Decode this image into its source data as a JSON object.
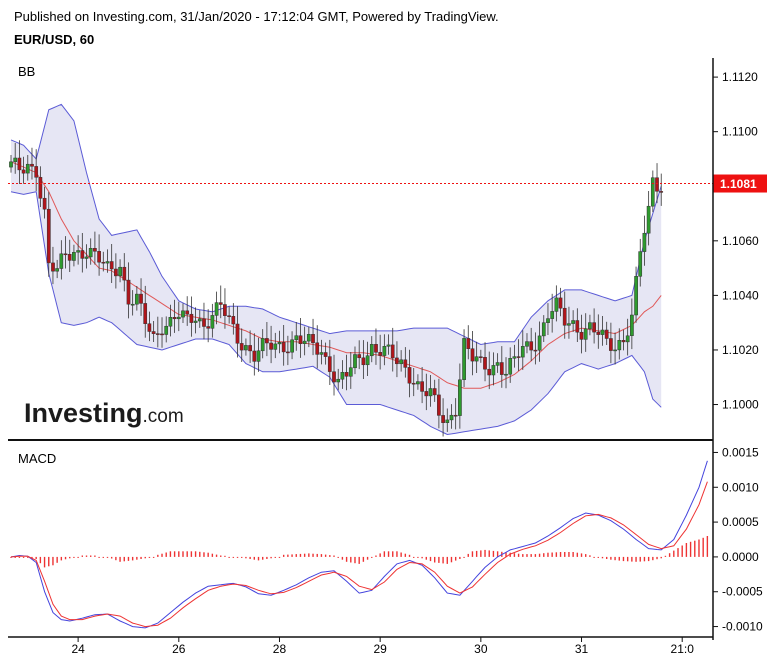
{
  "header": {
    "published": "Published on Investing.com, 31/Jan/2020 - 17:12:04 GMT, Powered by TradingView.",
    "symbol": "EUR/USD, 60"
  },
  "watermark": {
    "brand": "Investing",
    "suffix": ".com"
  },
  "colors": {
    "bb_band": "#5b5bd6",
    "bb_fill": "#e3e3f3",
    "bb_basis": "#e05858",
    "candle_up": "#2e9a2e",
    "candle_down": "#b0151b",
    "last_price": "#ee1111",
    "macd_line": "#4444dd",
    "signal_line": "#ee3333",
    "histogram": "#ee3333"
  },
  "chart_data": [
    {
      "type": "candlestick",
      "indicator_label": "BB",
      "last_price": 1.1081,
      "last_price_label": "1.1081",
      "ylim": [
        1.0987,
        1.1127
      ],
      "y_ticks": [
        {
          "value": 1.112,
          "label": "1.1120"
        },
        {
          "value": 1.11,
          "label": "1.1100"
        },
        {
          "value": 1.108,
          "label": "1.1080"
        },
        {
          "value": 1.106,
          "label": "1.1060"
        },
        {
          "value": 1.104,
          "label": "1.1040"
        },
        {
          "value": 1.102,
          "label": "1.1020"
        },
        {
          "value": 1.1,
          "label": "1.1000"
        }
      ],
      "x_ticks": [
        {
          "index": 16,
          "label": "24"
        },
        {
          "index": 40,
          "label": "26"
        },
        {
          "index": 64,
          "label": "28"
        },
        {
          "index": 88,
          "label": "29"
        },
        {
          "index": 112,
          "label": "30"
        },
        {
          "index": 136,
          "label": "31"
        },
        {
          "index": 160,
          "label": "21:0"
        }
      ],
      "price_anchors": [
        [
          0,
          1.1087
        ],
        [
          2,
          1.1085
        ],
        [
          4,
          1.1088
        ],
        [
          6,
          1.1087
        ],
        [
          8,
          1.107
        ],
        [
          9,
          1.105
        ],
        [
          11,
          1.1048
        ],
        [
          13,
          1.1055
        ],
        [
          15,
          1.1057
        ],
        [
          18,
          1.1056
        ],
        [
          20,
          1.1053
        ],
        [
          23,
          1.105
        ],
        [
          26,
          1.1052
        ],
        [
          28,
          1.1038
        ],
        [
          30,
          1.1037
        ],
        [
          32,
          1.103
        ],
        [
          34,
          1.1025
        ],
        [
          36,
          1.103
        ],
        [
          38,
          1.103
        ],
        [
          40,
          1.1032
        ],
        [
          42,
          1.103
        ],
        [
          44,
          1.1033
        ],
        [
          46,
          1.103
        ],
        [
          48,
          1.1033
        ],
        [
          50,
          1.1035
        ],
        [
          52,
          1.103
        ],
        [
          54,
          1.1025
        ],
        [
          56,
          1.1022
        ],
        [
          58,
          1.1018
        ],
        [
          60,
          1.102
        ],
        [
          62,
          1.1021
        ],
        [
          64,
          1.1022
        ],
        [
          66,
          1.1023
        ],
        [
          68,
          1.1024
        ],
        [
          70,
          1.1022
        ],
        [
          72,
          1.1021
        ],
        [
          74,
          1.102
        ],
        [
          76,
          1.1015
        ],
        [
          78,
          1.1008
        ],
        [
          80,
          1.101
        ],
        [
          82,
          1.1015
        ],
        [
          84,
          1.1018
        ],
        [
          86,
          1.1022
        ],
        [
          88,
          1.102
        ],
        [
          90,
          1.1018
        ],
        [
          92,
          1.1015
        ],
        [
          94,
          1.1014
        ],
        [
          96,
          1.101
        ],
        [
          98,
          1.1005
        ],
        [
          100,
          1.1003
        ],
        [
          102,
          1.0996
        ],
        [
          104,
          1.0994
        ],
        [
          106,
          1.1
        ],
        [
          108,
          1.1022
        ],
        [
          110,
          1.1016
        ],
        [
          112,
          1.1014
        ],
        [
          114,
          1.1014
        ],
        [
          116,
          1.1016
        ],
        [
          118,
          1.1012
        ],
        [
          120,
          1.1015
        ],
        [
          122,
          1.102
        ],
        [
          124,
          1.1022
        ],
        [
          126,
          1.1026
        ],
        [
          128,
          1.1033
        ],
        [
          130,
          1.1035
        ],
        [
          132,
          1.103
        ],
        [
          134,
          1.103
        ],
        [
          136,
          1.1028
        ],
        [
          138,
          1.1028
        ],
        [
          140,
          1.1025
        ],
        [
          142,
          1.1022
        ],
        [
          144,
          1.1022
        ],
        [
          146,
          1.1025
        ],
        [
          148,
          1.1032
        ],
        [
          150,
          1.1055
        ],
        [
          152,
          1.107
        ],
        [
          153,
          1.1082
        ],
        [
          155,
          1.1081
        ]
      ],
      "bb_upper_anchors": [
        [
          0,
          1.1097
        ],
        [
          3,
          1.1095
        ],
        [
          6,
          1.109
        ],
        [
          9,
          1.1108
        ],
        [
          12,
          1.111
        ],
        [
          15,
          1.1104
        ],
        [
          18,
          1.1085
        ],
        [
          21,
          1.1068
        ],
        [
          24,
          1.1062
        ],
        [
          27,
          1.1063
        ],
        [
          30,
          1.1064
        ],
        [
          33,
          1.1056
        ],
        [
          36,
          1.1047
        ],
        [
          40,
          1.1038
        ],
        [
          44,
          1.1035
        ],
        [
          48,
          1.1034
        ],
        [
          52,
          1.1036
        ],
        [
          56,
          1.1036
        ],
        [
          60,
          1.1035
        ],
        [
          64,
          1.1032
        ],
        [
          68,
          1.103
        ],
        [
          72,
          1.1028
        ],
        [
          76,
          1.1026
        ],
        [
          80,
          1.1027
        ],
        [
          84,
          1.1027
        ],
        [
          88,
          1.1027
        ],
        [
          92,
          1.1027
        ],
        [
          96,
          1.1028
        ],
        [
          100,
          1.1028
        ],
        [
          104,
          1.1028
        ],
        [
          108,
          1.1025
        ],
        [
          112,
          1.1022
        ],
        [
          116,
          1.1023
        ],
        [
          120,
          1.1023
        ],
        [
          124,
          1.1032
        ],
        [
          128,
          1.1038
        ],
        [
          132,
          1.1042
        ],
        [
          136,
          1.1042
        ],
        [
          140,
          1.104
        ],
        [
          144,
          1.1038
        ],
        [
          148,
          1.104
        ],
        [
          151,
          1.106
        ],
        [
          153,
          1.107
        ],
        [
          155,
          1.108
        ]
      ],
      "bb_basis_anchors": [
        [
          0,
          1.1089
        ],
        [
          3,
          1.1087
        ],
        [
          6,
          1.1085
        ],
        [
          9,
          1.1078
        ],
        [
          12,
          1.1068
        ],
        [
          15,
          1.106
        ],
        [
          18,
          1.1055
        ],
        [
          21,
          1.105
        ],
        [
          24,
          1.1049
        ],
        [
          27,
          1.1046
        ],
        [
          30,
          1.1043
        ],
        [
          33,
          1.104
        ],
        [
          36,
          1.1037
        ],
        [
          40,
          1.1033
        ],
        [
          44,
          1.1032
        ],
        [
          48,
          1.1031
        ],
        [
          52,
          1.1029
        ],
        [
          56,
          1.1027
        ],
        [
          60,
          1.1024
        ],
        [
          64,
          1.1023
        ],
        [
          68,
          1.1023
        ],
        [
          72,
          1.1022
        ],
        [
          76,
          1.1021
        ],
        [
          80,
          1.1019
        ],
        [
          84,
          1.1019
        ],
        [
          88,
          1.1018
        ],
        [
          92,
          1.1016
        ],
        [
          96,
          1.1014
        ],
        [
          100,
          1.1012
        ],
        [
          104,
          1.1008
        ],
        [
          108,
          1.1006
        ],
        [
          112,
          1.1006
        ],
        [
          116,
          1.1008
        ],
        [
          120,
          1.1011
        ],
        [
          124,
          1.1016
        ],
        [
          128,
          1.1022
        ],
        [
          132,
          1.1026
        ],
        [
          136,
          1.1028
        ],
        [
          140,
          1.1027
        ],
        [
          144,
          1.1026
        ],
        [
          148,
          1.1029
        ],
        [
          151,
          1.1034
        ],
        [
          153,
          1.1036
        ],
        [
          155,
          1.104
        ]
      ],
      "bb_lower_anchors": [
        [
          0,
          1.1078
        ],
        [
          3,
          1.1077
        ],
        [
          6,
          1.1078
        ],
        [
          9,
          1.1048
        ],
        [
          12,
          1.103
        ],
        [
          15,
          1.1029
        ],
        [
          18,
          1.103
        ],
        [
          21,
          1.1032
        ],
        [
          24,
          1.103
        ],
        [
          27,
          1.1026
        ],
        [
          30,
          1.1022
        ],
        [
          33,
          1.1021
        ],
        [
          36,
          1.102
        ],
        [
          40,
          1.1022
        ],
        [
          44,
          1.1024
        ],
        [
          48,
          1.1024
        ],
        [
          52,
          1.1022
        ],
        [
          56,
          1.1015
        ],
        [
          60,
          1.1012
        ],
        [
          64,
          1.1012
        ],
        [
          68,
          1.1013
        ],
        [
          72,
          1.1014
        ],
        [
          76,
          1.101
        ],
        [
          80,
          1.1
        ],
        [
          84,
          1.1
        ],
        [
          88,
          1.1
        ],
        [
          92,
          1.0998
        ],
        [
          96,
          1.0996
        ],
        [
          100,
          1.0992
        ],
        [
          104,
          1.0989
        ],
        [
          108,
          1.099
        ],
        [
          112,
          1.0991
        ],
        [
          116,
          1.0992
        ],
        [
          120,
          1.0994
        ],
        [
          124,
          1.0998
        ],
        [
          128,
          1.1004
        ],
        [
          132,
          1.1012
        ],
        [
          136,
          1.1015
        ],
        [
          140,
          1.1013
        ],
        [
          144,
          1.1015
        ],
        [
          148,
          1.1018
        ],
        [
          151,
          1.1012
        ],
        [
          153,
          1.1002
        ],
        [
          155,
          1.0999
        ]
      ]
    },
    {
      "type": "line",
      "indicator_label": "MACD",
      "ylim": [
        -0.00115,
        0.00165
      ],
      "y_ticks": [
        {
          "value": 0.0015,
          "label": "0.0015"
        },
        {
          "value": 0.001,
          "label": "0.0010"
        },
        {
          "value": 0.0005,
          "label": "0.0005"
        },
        {
          "value": 0.0,
          "label": "0.0000"
        },
        {
          "value": -0.0005,
          "label": "-0.0005"
        },
        {
          "value": -0.001,
          "label": "-0.0010"
        }
      ],
      "macd_anchors": [
        [
          0,
          0.0
        ],
        [
          2,
          2e-05
        ],
        [
          4,
          1e-05
        ],
        [
          6,
          -8e-05
        ],
        [
          8,
          -0.0005
        ],
        [
          10,
          -0.0008
        ],
        [
          12,
          -0.0009
        ],
        [
          14,
          -0.00092
        ],
        [
          17,
          -0.00088
        ],
        [
          20,
          -0.00083
        ],
        [
          23,
          -0.00082
        ],
        [
          26,
          -0.00092
        ],
        [
          29,
          -0.001
        ],
        [
          32,
          -0.00102
        ],
        [
          35,
          -0.00095
        ],
        [
          38,
          -0.0008
        ],
        [
          41,
          -0.00065
        ],
        [
          44,
          -0.00052
        ],
        [
          47,
          -0.00042
        ],
        [
          50,
          -0.0004
        ],
        [
          53,
          -0.00038
        ],
        [
          56,
          -0.00043
        ],
        [
          59,
          -0.00053
        ],
        [
          62,
          -0.00055
        ],
        [
          65,
          -0.00048
        ],
        [
          68,
          -0.0004
        ],
        [
          71,
          -0.0003
        ],
        [
          74,
          -0.00022
        ],
        [
          77,
          -0.0002
        ],
        [
          80,
          -0.00035
        ],
        [
          83,
          -0.00052
        ],
        [
          86,
          -0.00048
        ],
        [
          89,
          -0.00028
        ],
        [
          92,
          -0.0001
        ],
        [
          95,
          -5e-05
        ],
        [
          98,
          -0.00012
        ],
        [
          101,
          -0.0003
        ],
        [
          104,
          -0.00052
        ],
        [
          107,
          -0.00055
        ],
        [
          110,
          -0.00035
        ],
        [
          113,
          -0.00015
        ],
        [
          116,
          0.0
        ],
        [
          119,
          0.0001
        ],
        [
          122,
          0.00015
        ],
        [
          125,
          0.0002
        ],
        [
          128,
          0.0003
        ],
        [
          131,
          0.00042
        ],
        [
          134,
          0.00055
        ],
        [
          137,
          0.00063
        ],
        [
          140,
          0.0006
        ],
        [
          143,
          0.00052
        ],
        [
          146,
          0.0004
        ],
        [
          149,
          0.00025
        ],
        [
          152,
          0.00012
        ],
        [
          155,
          0.0001
        ],
        [
          158,
          0.00025
        ],
        [
          161,
          0.0006
        ],
        [
          164,
          0.001
        ],
        [
          166,
          0.00138
        ]
      ],
      "signal_anchors": [
        [
          0,
          0.0
        ],
        [
          2,
          1e-05
        ],
        [
          4,
          1e-05
        ],
        [
          6,
          -5e-05
        ],
        [
          8,
          -0.00035
        ],
        [
          10,
          -0.00068
        ],
        [
          12,
          -0.00085
        ],
        [
          14,
          -0.0009
        ],
        [
          17,
          -0.0009
        ],
        [
          20,
          -0.00085
        ],
        [
          23,
          -0.00082
        ],
        [
          26,
          -0.00085
        ],
        [
          29,
          -0.00095
        ],
        [
          32,
          -0.001
        ],
        [
          35,
          -0.00098
        ],
        [
          38,
          -0.00088
        ],
        [
          41,
          -0.00073
        ],
        [
          44,
          -0.0006
        ],
        [
          47,
          -0.00048
        ],
        [
          50,
          -0.00042
        ],
        [
          53,
          -0.00039
        ],
        [
          56,
          -0.00041
        ],
        [
          59,
          -0.00048
        ],
        [
          62,
          -0.00053
        ],
        [
          65,
          -0.00051
        ],
        [
          68,
          -0.00044
        ],
        [
          71,
          -0.00035
        ],
        [
          74,
          -0.00026
        ],
        [
          77,
          -0.00022
        ],
        [
          80,
          -0.00028
        ],
        [
          83,
          -0.00042
        ],
        [
          86,
          -0.00047
        ],
        [
          89,
          -0.00036
        ],
        [
          92,
          -0.00018
        ],
        [
          95,
          -8e-05
        ],
        [
          98,
          -0.0001
        ],
        [
          101,
          -0.00022
        ],
        [
          104,
          -0.00042
        ],
        [
          107,
          -0.00052
        ],
        [
          110,
          -0.00043
        ],
        [
          113,
          -0.00025
        ],
        [
          116,
          -8e-05
        ],
        [
          119,
          4e-05
        ],
        [
          122,
          0.00011
        ],
        [
          125,
          0.00016
        ],
        [
          128,
          0.00024
        ],
        [
          131,
          0.00035
        ],
        [
          134,
          0.00048
        ],
        [
          137,
          0.00059
        ],
        [
          140,
          0.00061
        ],
        [
          143,
          0.00056
        ],
        [
          146,
          0.00046
        ],
        [
          149,
          0.00032
        ],
        [
          152,
          0.00018
        ],
        [
          155,
          0.00012
        ],
        [
          158,
          0.00016
        ],
        [
          161,
          0.0004
        ],
        [
          164,
          0.00075
        ],
        [
          166,
          0.00108
        ]
      ]
    }
  ]
}
